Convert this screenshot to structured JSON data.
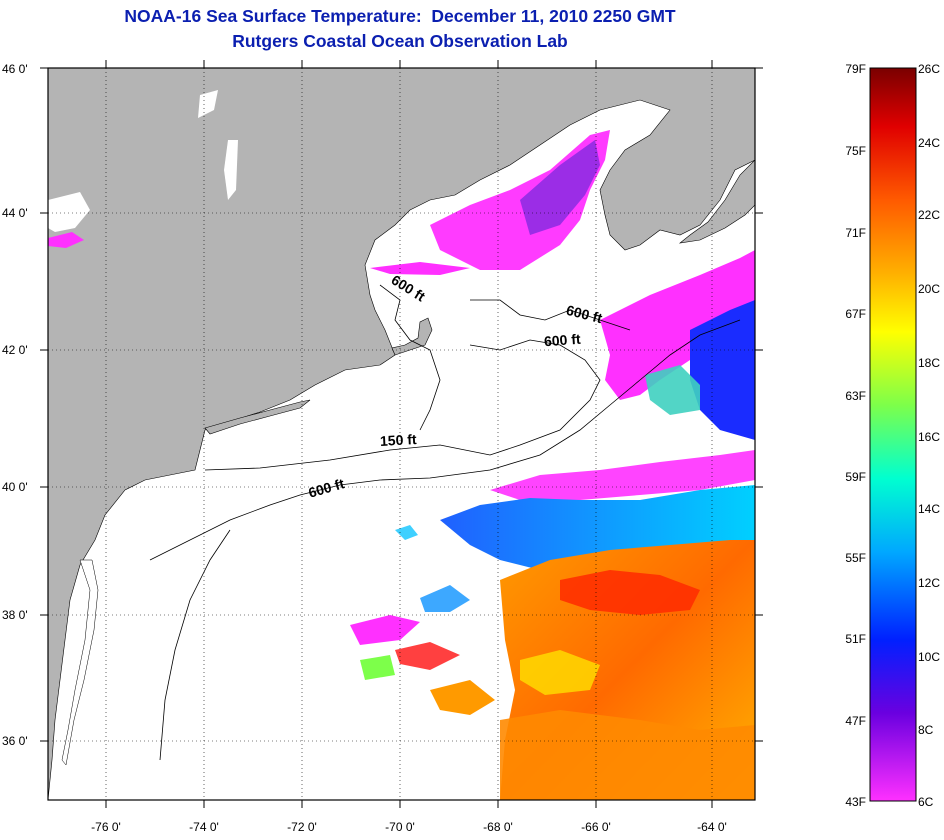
{
  "title": {
    "line1": "NOAA-16 Sea Surface Temperature:  December 11, 2010 2250 GMT",
    "line2": "Rutgers Coastal Ocean Observation Lab"
  },
  "map": {
    "latitude_labels": [
      "46 0'",
      "44 0'",
      "42 0'",
      "40 0'",
      "38 0'",
      "36 0'"
    ],
    "longitude_labels": [
      "-76 0'",
      "-74 0'",
      "-72 0'",
      "-70 0'",
      "-68 0'",
      "-66 0'",
      "-64 0'"
    ],
    "contour_labels": [
      "600 ft",
      "600 ft",
      "600 ft",
      "150 ft",
      "600 ft"
    ],
    "land_color": "#b4b4b4",
    "ocean_color": "#ffffff"
  },
  "colorbar": {
    "fahrenheit_labels": [
      "79F",
      "75F",
      "71F",
      "67F",
      "63F",
      "59F",
      "55F",
      "51F",
      "47F",
      "43F"
    ],
    "celsius_labels": [
      "26C",
      "24C",
      "22C",
      "20C",
      "18C",
      "16C",
      "14C",
      "12C",
      "10C",
      "8C",
      "6C"
    ],
    "gradient_colors": [
      "#7a0000",
      "#e00000",
      "#ff5a00",
      "#ffb000",
      "#ffff00",
      "#7dff4a",
      "#00ffd0",
      "#00a8ff",
      "#0020ff",
      "#6a00e0",
      "#ff30ff"
    ]
  }
}
